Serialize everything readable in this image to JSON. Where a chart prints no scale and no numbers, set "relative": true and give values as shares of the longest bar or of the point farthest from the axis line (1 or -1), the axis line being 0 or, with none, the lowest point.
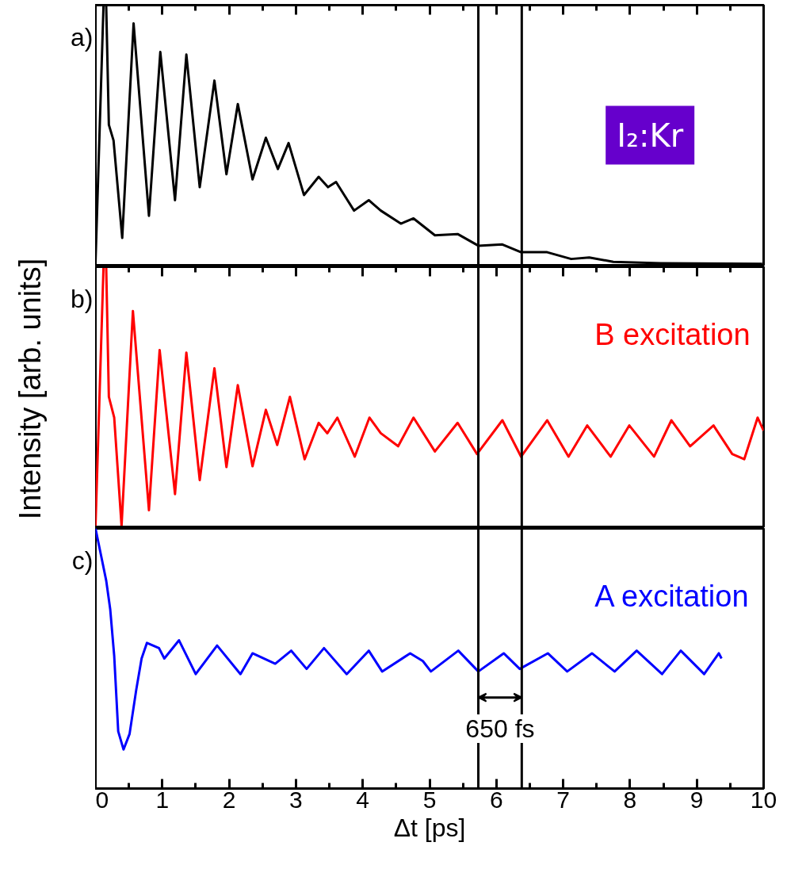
{
  "chart_data": [
    {
      "type": "line",
      "title": "a)",
      "relative": true,
      "tick_labels": false,
      "xlim": [
        0,
        10
      ],
      "xticks": [
        0,
        {
          "value": 0.5,
          "label": null
        },
        1,
        {
          "value": 1.5,
          "label": null
        },
        2,
        {
          "value": 2.5,
          "label": null
        },
        3,
        {
          "value": 3.5,
          "label": null
        },
        4,
        {
          "value": 4.5,
          "label": null
        },
        5,
        {
          "value": 5.5,
          "label": null
        },
        6,
        {
          "value": 6.5,
          "label": null
        },
        7,
        {
          "value": 7.5,
          "label": null
        },
        8,
        {
          "value": 8.5,
          "label": null
        },
        9,
        {
          "value": 9.5,
          "label": null
        },
        10
      ],
      "annotations": [
        "I₂:Kr"
      ],
      "ref_lines": [
        {
          "axis": "x",
          "value": 5.73,
          "color": "#000000"
        },
        {
          "axis": "x",
          "value": 6.38,
          "color": "#000000"
        }
      ],
      "series": [
        {
          "color": "#000000",
          "x": [
            0,
            0.12,
            0.16,
            0.2,
            0.27,
            0.4,
            0.57,
            0.8,
            0.97,
            1.19,
            1.36,
            1.56,
            1.78,
            1.96,
            2.13,
            2.35,
            2.55,
            2.73,
            2.89,
            3.12,
            3.34,
            3.48,
            3.6,
            3.87,
            4.09,
            4.27,
            4.57,
            4.76,
            5.08,
            5.42,
            5.73,
            6.09,
            6.37,
            6.76,
            7.12,
            7.39,
            7.75,
            8.46,
            9.98
          ],
          "values": [
            0.01,
            1,
            1,
            0.54,
            0.48,
            0.105,
            0.93,
            0.19,
            0.82,
            0.25,
            0.81,
            0.3,
            0.71,
            0.35,
            0.62,
            0.33,
            0.49,
            0.37,
            0.47,
            0.27,
            0.34,
            0.3,
            0.32,
            0.21,
            0.25,
            0.21,
            0.16,
            0.18,
            0.115,
            0.12,
            0.075,
            0.08,
            0.05,
            0.05,
            0.024,
            0.03,
            0.013,
            0.008,
            0.005
          ]
        }
      ]
    },
    {
      "type": "line",
      "title": "b)",
      "ylabel": "Intensity [arb. units]",
      "relative": true,
      "tick_labels": false,
      "xlim": [
        0,
        10
      ],
      "xticks": [
        0,
        {
          "value": 0.5,
          "label": null
        },
        1,
        {
          "value": 1.5,
          "label": null
        },
        2,
        {
          "value": 2.5,
          "label": null
        },
        3,
        {
          "value": 3.5,
          "label": null
        },
        4,
        {
          "value": 4.5,
          "label": null
        },
        5,
        {
          "value": 5.5,
          "label": null
        },
        6,
        {
          "value": 6.5,
          "label": null
        },
        7,
        {
          "value": 7.5,
          "label": null
        },
        8,
        {
          "value": 8.5,
          "label": null
        },
        9,
        {
          "value": 9.5,
          "label": null
        },
        10
      ],
      "ref_lines": [
        {
          "axis": "x",
          "value": 5.73,
          "color": "#000000"
        },
        {
          "axis": "x",
          "value": 6.38,
          "color": "#000000"
        }
      ],
      "series": [
        {
          "name": "B excitation",
          "color": "#ff0000",
          "x": [
            0,
            0.12,
            0.16,
            0.2,
            0.28,
            0.39,
            0.56,
            0.8,
            0.96,
            1.19,
            1.36,
            1.56,
            1.78,
            1.96,
            2.13,
            2.35,
            2.55,
            2.72,
            2.91,
            3.13,
            3.34,
            3.47,
            3.62,
            3.88,
            4.1,
            4.27,
            4.53,
            4.76,
            5.08,
            5.42,
            5.71,
            6.09,
            6.37,
            6.76,
            7.08,
            7.36,
            7.71,
            7.99,
            8.36,
            8.62,
            8.9,
            9.25,
            9.53,
            9.71,
            9.91,
            10.0
          ],
          "values": [
            0.003,
            1,
            1,
            0.5,
            0.42,
            0.003,
            0.83,
            0.064,
            0.68,
            0.126,
            0.67,
            0.18,
            0.61,
            0.23,
            0.545,
            0.233,
            0.45,
            0.315,
            0.5,
            0.26,
            0.4,
            0.36,
            0.42,
            0.27,
            0.42,
            0.36,
            0.31,
            0.42,
            0.29,
            0.4,
            0.28,
            0.41,
            0.27,
            0.41,
            0.27,
            0.39,
            0.27,
            0.39,
            0.27,
            0.41,
            0.31,
            0.39,
            0.28,
            0.26,
            0.42,
            0.37
          ]
        }
      ]
    },
    {
      "type": "line",
      "title": "c)",
      "xlabel": "Δt [ps]",
      "relative": true,
      "tick_labels": "x",
      "xlim": [
        0,
        10
      ],
      "xticks": [
        0,
        {
          "value": 0.5,
          "label": null
        },
        1,
        {
          "value": 1.5,
          "label": null
        },
        2,
        {
          "value": 2.5,
          "label": null
        },
        3,
        {
          "value": 3.5,
          "label": null
        },
        4,
        {
          "value": 4.5,
          "label": null
        },
        5,
        {
          "value": 5.5,
          "label": null
        },
        6,
        {
          "value": 6.5,
          "label": null
        },
        7,
        {
          "value": 7.5,
          "label": null
        },
        8,
        {
          "value": 8.5,
          "label": null
        },
        9,
        {
          "value": 9.5,
          "label": null
        },
        10
      ],
      "annotations": [
        "650 fs"
      ],
      "ref_lines": [
        {
          "axis": "x",
          "value": 5.73,
          "color": "#000000"
        },
        {
          "axis": "x",
          "value": 6.38,
          "color": "#000000"
        }
      ],
      "series": [
        {
          "name": "A excitation",
          "color": "#0000ff",
          "x": [
            0,
            0.08,
            0.16,
            0.22,
            0.28,
            0.34,
            0.42,
            0.51,
            0.61,
            0.69,
            0.77,
            0.95,
            1.03,
            1.25,
            1.5,
            1.82,
            2.17,
            2.35,
            2.69,
            2.93,
            3.16,
            3.42,
            3.76,
            4.09,
            4.29,
            4.71,
            4.9,
            5.02,
            5.43,
            5.73,
            6.11,
            6.35,
            6.77,
            7.06,
            7.43,
            7.77,
            8.1,
            8.48,
            8.76,
            9.11,
            9.33,
            9.37
          ],
          "values": [
            1,
            0.9,
            0.8,
            0.69,
            0.51,
            0.22,
            0.15,
            0.21,
            0.38,
            0.5,
            0.56,
            0.54,
            0.5,
            0.57,
            0.44,
            0.55,
            0.44,
            0.52,
            0.48,
            0.53,
            0.46,
            0.54,
            0.44,
            0.53,
            0.45,
            0.52,
            0.49,
            0.45,
            0.53,
            0.45,
            0.52,
            0.46,
            0.52,
            0.45,
            0.52,
            0.45,
            0.53,
            0.44,
            0.53,
            0.44,
            0.52,
            0.5
          ]
        }
      ]
    }
  ]
}
